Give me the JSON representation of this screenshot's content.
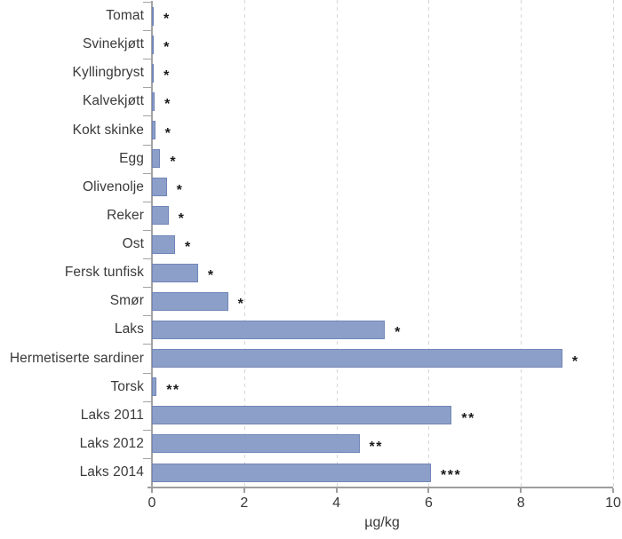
{
  "chart_data": {
    "type": "bar",
    "orientation": "horizontal",
    "title": "",
    "xlabel": "µg/kg",
    "ylabel": "",
    "xlim": [
      0,
      10
    ],
    "xticks": [
      0,
      2,
      4,
      6,
      8,
      10
    ],
    "grid": "vertical-dashed-at-ticks-except-zero",
    "legend_position": "none",
    "categories": [
      "Tomat",
      "Svinekjøtt",
      "Kyllingbryst",
      "Kalvekjøtt",
      "Kokt skinke",
      "Egg",
      "Olivenolje",
      "Reker",
      "Ost",
      "Fersk tunfisk",
      "Smør",
      "Laks",
      "Hermetiserte sardiner",
      "Torsk",
      "Laks 2011",
      "Laks 2012",
      "Laks 2014"
    ],
    "values": [
      0.03,
      0.04,
      0.04,
      0.06,
      0.07,
      0.18,
      0.32,
      0.36,
      0.5,
      1.0,
      1.65,
      5.05,
      8.9,
      0.1,
      6.5,
      4.5,
      6.05
    ],
    "significance_markers": [
      "*",
      "*",
      "*",
      "*",
      "*",
      "*",
      "*",
      "*",
      "*",
      "*",
      "*",
      "*",
      "*",
      "**",
      "**",
      "**",
      "***"
    ],
    "colors": {
      "bar_fill": "#8c9fc8",
      "bar_border": "#7286b8",
      "gridline": "#d7d7d7",
      "axis": "#9e9e9e",
      "label_text": "#3a3a3a",
      "marker_text": "#1a1a1a",
      "background": "#ffffff"
    }
  }
}
